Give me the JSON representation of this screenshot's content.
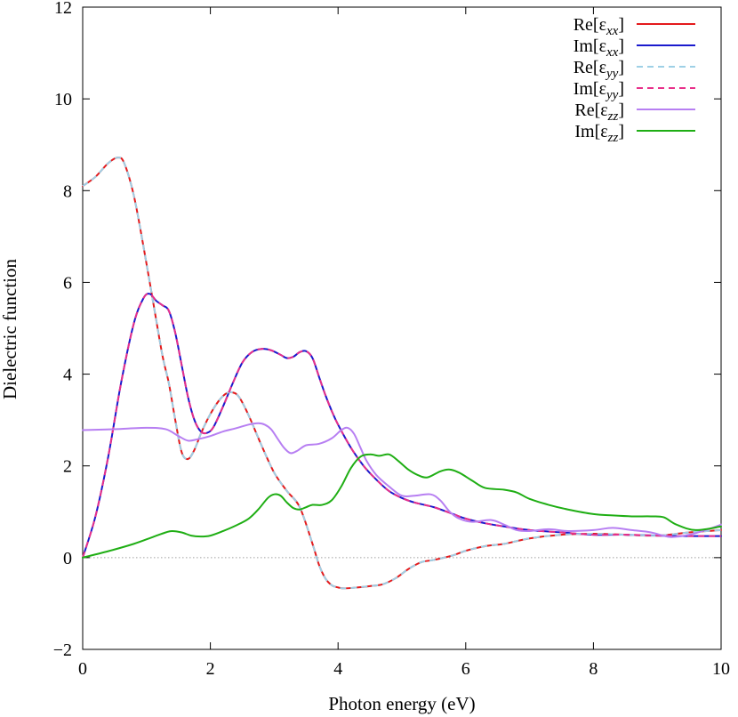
{
  "chart_data": {
    "type": "line",
    "title": "",
    "xlabel": "Photon energy (eV)",
    "ylabel": "Dielectric function",
    "xlim": [
      0,
      10
    ],
    "ylim": [
      -2,
      12
    ],
    "xticks": [
      0,
      2,
      4,
      6,
      8,
      10
    ],
    "yticks": [
      -2,
      0,
      2,
      4,
      6,
      8,
      10,
      12
    ],
    "grid": false,
    "legend_position": "top-right",
    "reference_line": {
      "y": 0,
      "style": "dotted",
      "color": "#a0a0a0"
    },
    "series": [
      {
        "name": "Re[εxx]",
        "base": "Re[ε",
        "sub": "xx",
        "close": "]",
        "color": "#e41a1c",
        "dash": "solid",
        "x": [
          0,
          0.2,
          0.4,
          0.55,
          0.65,
          0.8,
          0.95,
          1.1,
          1.25,
          1.35,
          1.45,
          1.55,
          1.65,
          1.75,
          1.85,
          1.95,
          2.05,
          2.15,
          2.25,
          2.35,
          2.45,
          2.6,
          2.8,
          3.0,
          3.2,
          3.4,
          3.6,
          3.7,
          3.8,
          3.9,
          4.0,
          4.1,
          4.3,
          4.5,
          4.7,
          4.9,
          5.1,
          5.3,
          5.5,
          5.8,
          6.0,
          6.3,
          6.6,
          7.0,
          7.5,
          8.0,
          8.5,
          9.0,
          9.5,
          10.0
        ],
        "y": [
          8.1,
          8.3,
          8.6,
          8.72,
          8.6,
          7.9,
          6.8,
          5.6,
          4.4,
          3.8,
          3.0,
          2.3,
          2.15,
          2.35,
          2.7,
          3.0,
          3.25,
          3.45,
          3.58,
          3.6,
          3.5,
          3.1,
          2.45,
          1.85,
          1.45,
          1.1,
          0.3,
          -0.15,
          -0.45,
          -0.6,
          -0.65,
          -0.67,
          -0.65,
          -0.62,
          -0.58,
          -0.45,
          -0.25,
          -0.1,
          -0.05,
          0.05,
          0.15,
          0.25,
          0.3,
          0.42,
          0.5,
          0.52,
          0.5,
          0.48,
          0.55,
          0.6
        ]
      },
      {
        "name": "Im[εxx]",
        "base": "Im[ε",
        "sub": "xx",
        "close": "]",
        "color": "#1a1acd",
        "dash": "solid",
        "x": [
          0,
          0.2,
          0.4,
          0.6,
          0.8,
          0.95,
          1.05,
          1.15,
          1.25,
          1.35,
          1.45,
          1.55,
          1.65,
          1.75,
          1.85,
          1.95,
          2.05,
          2.2,
          2.35,
          2.5,
          2.65,
          2.8,
          2.95,
          3.1,
          3.2,
          3.3,
          3.4,
          3.5,
          3.6,
          3.7,
          3.8,
          3.9,
          4.0,
          4.2,
          4.4,
          4.6,
          4.8,
          5.0,
          5.2,
          5.5,
          5.8,
          6.0,
          6.3,
          6.6,
          7.0,
          7.5,
          8.0,
          8.5,
          9.0,
          9.5,
          10.0
        ],
        "y": [
          0.0,
          0.9,
          2.2,
          3.8,
          5.1,
          5.65,
          5.75,
          5.6,
          5.5,
          5.38,
          4.9,
          4.2,
          3.5,
          3.0,
          2.75,
          2.72,
          2.85,
          3.3,
          3.8,
          4.25,
          4.48,
          4.55,
          4.52,
          4.42,
          4.35,
          4.38,
          4.48,
          4.5,
          4.35,
          3.95,
          3.55,
          3.2,
          2.9,
          2.4,
          2.0,
          1.7,
          1.45,
          1.3,
          1.2,
          1.1,
          0.95,
          0.85,
          0.75,
          0.68,
          0.6,
          0.55,
          0.5,
          0.5,
          0.48,
          0.47,
          0.47
        ]
      },
      {
        "name": "Re[εyy]",
        "base": "Re[ε",
        "sub": "yy",
        "close": "]",
        "color": "#9ed0e6",
        "dash": "dashed",
        "x": [
          0,
          0.2,
          0.4,
          0.55,
          0.65,
          0.8,
          0.95,
          1.1,
          1.25,
          1.35,
          1.45,
          1.55,
          1.65,
          1.75,
          1.85,
          1.95,
          2.05,
          2.15,
          2.25,
          2.35,
          2.45,
          2.6,
          2.8,
          3.0,
          3.2,
          3.4,
          3.6,
          3.7,
          3.8,
          3.9,
          4.0,
          4.1,
          4.3,
          4.5,
          4.7,
          4.9,
          5.1,
          5.3,
          5.5,
          5.8,
          6.0,
          6.3,
          6.6,
          7.0,
          7.5,
          8.0,
          8.5,
          9.0,
          9.5,
          10.0
        ],
        "y": [
          8.1,
          8.3,
          8.6,
          8.72,
          8.6,
          7.9,
          6.8,
          5.6,
          4.4,
          3.8,
          3.0,
          2.3,
          2.15,
          2.35,
          2.7,
          3.0,
          3.25,
          3.45,
          3.58,
          3.6,
          3.5,
          3.1,
          2.45,
          1.85,
          1.45,
          1.1,
          0.3,
          -0.15,
          -0.45,
          -0.6,
          -0.65,
          -0.67,
          -0.65,
          -0.62,
          -0.58,
          -0.45,
          -0.25,
          -0.1,
          -0.05,
          0.05,
          0.15,
          0.25,
          0.3,
          0.42,
          0.5,
          0.52,
          0.5,
          0.48,
          0.55,
          0.6
        ]
      },
      {
        "name": "Im[εyy]",
        "base": "Im[ε",
        "sub": "yy",
        "close": "]",
        "color": "#e8308a",
        "dash": "dashed",
        "x": [
          0,
          0.2,
          0.4,
          0.6,
          0.8,
          0.95,
          1.05,
          1.15,
          1.25,
          1.35,
          1.45,
          1.55,
          1.65,
          1.75,
          1.85,
          1.95,
          2.05,
          2.2,
          2.35,
          2.5,
          2.65,
          2.8,
          2.95,
          3.1,
          3.2,
          3.3,
          3.4,
          3.5,
          3.6,
          3.7,
          3.8,
          3.9,
          4.0,
          4.2,
          4.4,
          4.6,
          4.8,
          5.0,
          5.2,
          5.5,
          5.8,
          6.0,
          6.3,
          6.6,
          7.0,
          7.5,
          8.0,
          8.5,
          9.0,
          9.5,
          10.0
        ],
        "y": [
          0.0,
          0.9,
          2.2,
          3.8,
          5.1,
          5.65,
          5.75,
          5.6,
          5.5,
          5.38,
          4.9,
          4.2,
          3.5,
          3.0,
          2.75,
          2.72,
          2.85,
          3.3,
          3.8,
          4.25,
          4.48,
          4.55,
          4.52,
          4.42,
          4.35,
          4.38,
          4.48,
          4.5,
          4.35,
          3.95,
          3.55,
          3.2,
          2.9,
          2.4,
          2.0,
          1.7,
          1.45,
          1.3,
          1.2,
          1.1,
          0.95,
          0.85,
          0.75,
          0.68,
          0.6,
          0.55,
          0.5,
          0.5,
          0.48,
          0.47,
          0.47
        ]
      },
      {
        "name": "Re[εzz]",
        "base": "Re[ε",
        "sub": "zz",
        "close": "]",
        "color": "#b77ff2",
        "dash": "solid",
        "x": [
          0,
          0.5,
          1.0,
          1.3,
          1.5,
          1.65,
          1.8,
          2.0,
          2.2,
          2.4,
          2.6,
          2.75,
          2.85,
          2.95,
          3.05,
          3.15,
          3.25,
          3.35,
          3.5,
          3.7,
          3.9,
          4.05,
          4.15,
          4.25,
          4.35,
          4.45,
          4.6,
          4.8,
          5.0,
          5.2,
          5.45,
          5.6,
          5.75,
          5.9,
          6.1,
          6.4,
          6.6,
          6.8,
          7.0,
          7.3,
          7.6,
          8.0,
          8.3,
          8.6,
          8.9,
          9.2,
          9.5,
          9.8,
          10.0
        ],
        "y": [
          2.78,
          2.8,
          2.83,
          2.8,
          2.65,
          2.55,
          2.58,
          2.65,
          2.75,
          2.82,
          2.9,
          2.93,
          2.9,
          2.8,
          2.6,
          2.4,
          2.28,
          2.32,
          2.45,
          2.48,
          2.6,
          2.78,
          2.83,
          2.7,
          2.4,
          2.1,
          1.8,
          1.55,
          1.35,
          1.35,
          1.38,
          1.25,
          1.0,
          0.85,
          0.78,
          0.82,
          0.72,
          0.6,
          0.58,
          0.62,
          0.58,
          0.6,
          0.65,
          0.6,
          0.55,
          0.45,
          0.5,
          0.62,
          0.72
        ]
      },
      {
        "name": "Im[εzz]",
        "base": "Im[ε",
        "sub": "zz",
        "close": "]",
        "color": "#1fae14",
        "dash": "solid",
        "x": [
          0,
          0.4,
          0.8,
          1.1,
          1.3,
          1.4,
          1.55,
          1.7,
          1.85,
          2.0,
          2.2,
          2.4,
          2.6,
          2.75,
          2.9,
          3.0,
          3.1,
          3.2,
          3.3,
          3.4,
          3.5,
          3.6,
          3.75,
          3.9,
          4.05,
          4.2,
          4.35,
          4.5,
          4.65,
          4.8,
          4.95,
          5.1,
          5.25,
          5.4,
          5.6,
          5.75,
          5.9,
          6.1,
          6.3,
          6.6,
          6.8,
          7.0,
          7.3,
          7.6,
          8.0,
          8.3,
          8.6,
          8.9,
          9.1,
          9.3,
          9.6,
          10.0
        ],
        "y": [
          0.0,
          0.14,
          0.3,
          0.45,
          0.55,
          0.58,
          0.55,
          0.48,
          0.46,
          0.48,
          0.58,
          0.7,
          0.85,
          1.05,
          1.3,
          1.38,
          1.35,
          1.2,
          1.08,
          1.05,
          1.1,
          1.15,
          1.15,
          1.25,
          1.55,
          1.95,
          2.2,
          2.25,
          2.22,
          2.25,
          2.1,
          1.92,
          1.8,
          1.75,
          1.88,
          1.92,
          1.85,
          1.68,
          1.52,
          1.48,
          1.42,
          1.28,
          1.15,
          1.05,
          0.95,
          0.92,
          0.9,
          0.9,
          0.88,
          0.72,
          0.6,
          0.68
        ]
      }
    ]
  }
}
